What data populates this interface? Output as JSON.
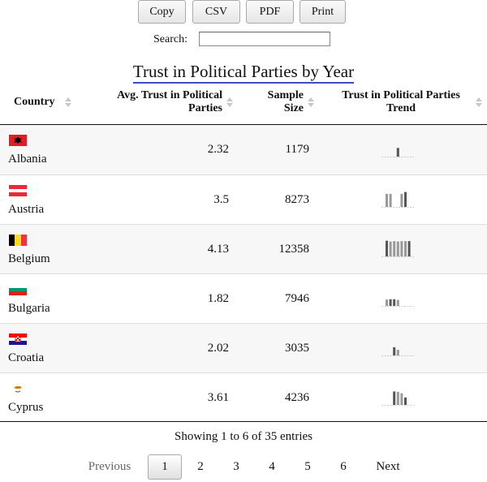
{
  "toolbar": {
    "buttons": [
      {
        "label": "Copy"
      },
      {
        "label": "CSV"
      },
      {
        "label": "PDF"
      },
      {
        "label": "Print"
      }
    ]
  },
  "search": {
    "label": "Search:",
    "value": ""
  },
  "table": {
    "title": "Trust in Political Parties by Year",
    "columns": [
      "Country",
      "Avg. Trust in Political Parties",
      "Sample Size",
      "Trust in Political Parties Trend"
    ],
    "rows": [
      {
        "country": "Albania",
        "flag": "albania-flag",
        "avg": "2.32",
        "size": "1179",
        "trend": [
          0,
          0,
          0,
          2.32,
          0,
          0
        ]
      },
      {
        "country": "Austria",
        "flag": "austria-flag",
        "avg": "3.5",
        "size": "8273",
        "trend": [
          3.5,
          3.5,
          0,
          0,
          3.5,
          4.0
        ]
      },
      {
        "country": "Belgium",
        "flag": "belgium-flag",
        "avg": "4.13",
        "size": "12358",
        "trend": [
          4.2,
          4.0,
          4.1,
          4.0,
          4.1,
          4.1,
          4.1
        ]
      },
      {
        "country": "Bulgaria",
        "flag": "bulgaria-flag",
        "avg": "1.82",
        "size": "7946",
        "trend": [
          1.7,
          1.8,
          1.8,
          1.6,
          0,
          0
        ]
      },
      {
        "country": "Croatia",
        "flag": "croatia-flag",
        "avg": "2.02",
        "size": "3035",
        "trend": [
          0,
          0,
          2.2,
          1.5,
          0,
          0
        ]
      },
      {
        "country": "Cyprus",
        "flag": "cyprus-flag",
        "avg": "3.61",
        "size": "4236",
        "trend": [
          0,
          0,
          3.6,
          3.5,
          3.1,
          2.0
        ]
      }
    ]
  },
  "info": "Showing 1 to 6 of 35 entries",
  "pagination": {
    "previous": "Previous",
    "next": "Next",
    "pages": [
      "1",
      "2",
      "3",
      "4",
      "5",
      "6"
    ],
    "current": "1"
  },
  "colors": {
    "accent_underline": "#3a4fc0",
    "spark": "#999999",
    "spark_highlight": "#555555"
  }
}
